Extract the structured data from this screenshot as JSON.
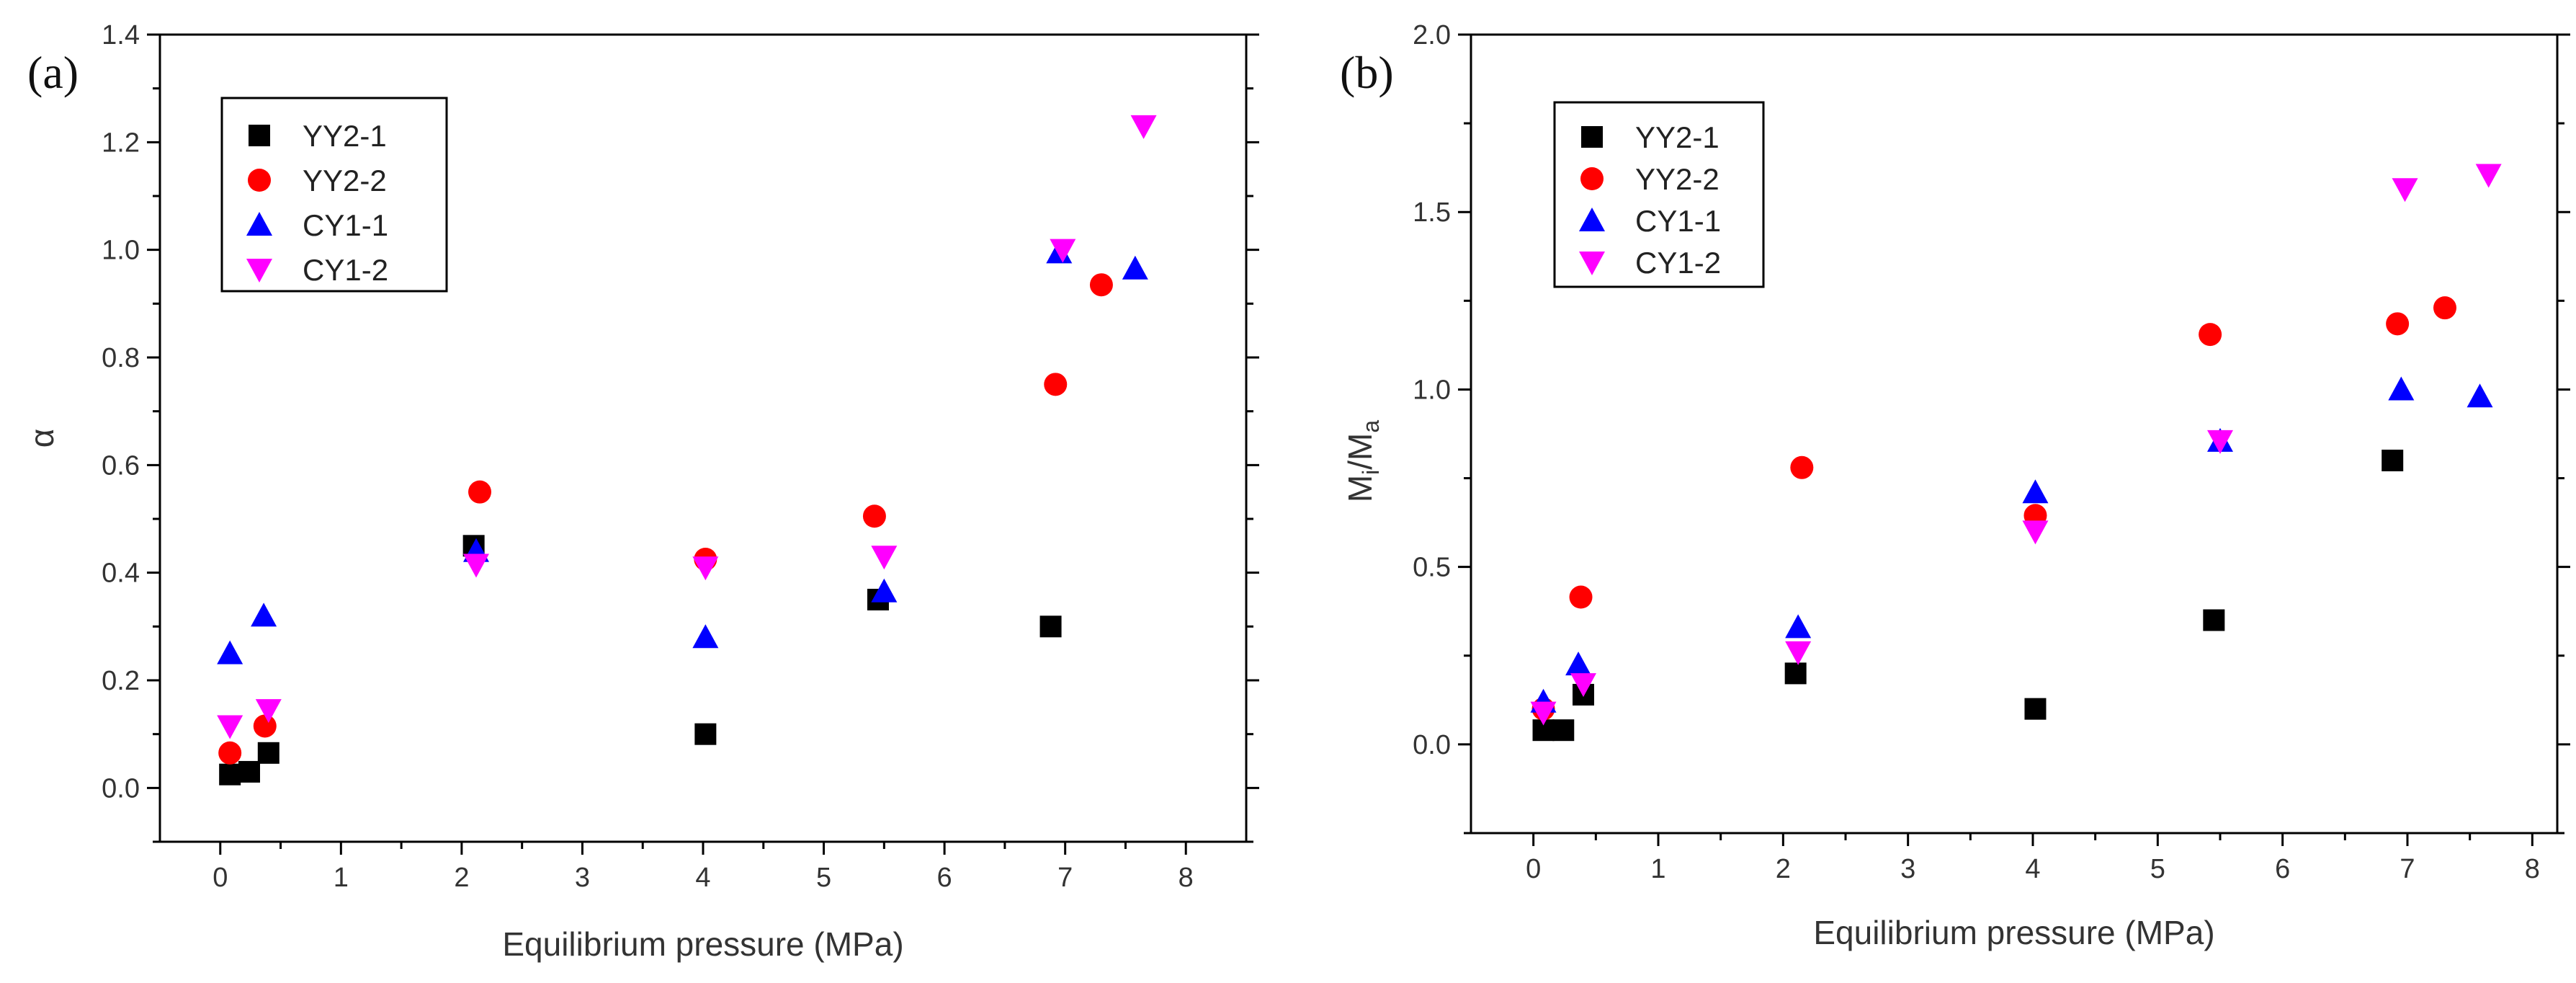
{
  "chart_data": [
    {
      "type": "scatter",
      "panel_label": "(a)",
      "xlabel": "Equilibrium pressure (MPa)",
      "ylabel": "α",
      "ylabel_sub": "",
      "xlim": [
        -0.5,
        8.5
      ],
      "ylim": [
        -0.1,
        1.4
      ],
      "xticks": [
        0,
        1,
        2,
        3,
        4,
        5,
        6,
        7,
        8
      ],
      "yticks": [
        0.0,
        0.2,
        0.4,
        0.6,
        0.8,
        1.0,
        1.2,
        1.4
      ],
      "ytick_labels": [
        "0.0",
        "0.2",
        "0.4",
        "0.6",
        "0.8",
        "1.0",
        "1.2",
        "1.4"
      ],
      "xtick_labels": [
        "0",
        "1",
        "2",
        "3",
        "4",
        "5",
        "6",
        "7",
        "8"
      ],
      "legend_position": "top-left",
      "series": [
        {
          "name": "YY2-1",
          "marker": "square",
          "color": "#000000",
          "x": [
            0.08,
            0.24,
            0.4,
            2.1,
            4.02,
            5.45,
            6.88
          ],
          "y": [
            0.025,
            0.03,
            0.065,
            0.45,
            0.1,
            0.35,
            0.3
          ]
        },
        {
          "name": "YY2-2",
          "marker": "circle",
          "color": "#ff0000",
          "x": [
            0.08,
            0.37,
            2.15,
            4.02,
            5.42,
            6.92,
            7.3
          ],
          "y": [
            0.065,
            0.115,
            0.55,
            0.425,
            0.505,
            0.75,
            0.935
          ]
        },
        {
          "name": "CY1-1",
          "marker": "triangle-up",
          "color": "#0000ff",
          "x": [
            0.08,
            0.36,
            2.12,
            4.02,
            5.5,
            6.95,
            7.58
          ],
          "y": [
            0.25,
            0.32,
            0.44,
            0.28,
            0.365,
            0.995,
            0.965
          ]
        },
        {
          "name": "CY1-2",
          "marker": "triangle-down",
          "color": "#ff00ff",
          "x": [
            0.08,
            0.4,
            2.12,
            4.02,
            5.5,
            6.98,
            7.65
          ],
          "y": [
            0.115,
            0.145,
            0.415,
            0.41,
            0.43,
            1.0,
            1.23
          ]
        }
      ]
    },
    {
      "type": "scatter",
      "panel_label": "(b)",
      "xlabel": "Equilibrium pressure (MPa)",
      "ylabel": "M",
      "ylabel_sub": "i",
      "ylabel_tail": "/M",
      "ylabel_sub2": "a",
      "xlim": [
        -0.5,
        8.2
      ],
      "ylim": [
        -0.25,
        2.0
      ],
      "xticks": [
        0,
        1,
        2,
        3,
        4,
        5,
        6,
        7,
        8
      ],
      "yticks": [
        0.0,
        0.5,
        1.0,
        1.5,
        2.0
      ],
      "ytick_labels": [
        "0.0",
        "0.5",
        "1.0",
        "1.5",
        "2.0"
      ],
      "xtick_labels": [
        "0",
        "1",
        "2",
        "3",
        "4",
        "5",
        "6",
        "7",
        "8"
      ],
      "legend_position": "top-left",
      "series": [
        {
          "name": "YY2-1",
          "marker": "square",
          "color": "#000000",
          "x": [
            0.08,
            0.24,
            0.4,
            2.1,
            4.02,
            5.45,
            6.88
          ],
          "y": [
            0.04,
            0.04,
            0.14,
            0.2,
            0.1,
            0.35,
            0.8
          ]
        },
        {
          "name": "YY2-2",
          "marker": "circle",
          "color": "#ff0000",
          "x": [
            0.08,
            0.38,
            2.15,
            4.02,
            5.42,
            6.92,
            7.3
          ],
          "y": [
            0.1,
            0.415,
            0.78,
            0.645,
            1.155,
            1.185,
            1.23
          ]
        },
        {
          "name": "CY1-1",
          "marker": "triangle-up",
          "color": "#0000ff",
          "x": [
            0.08,
            0.36,
            2.12,
            4.02,
            5.5,
            6.95,
            7.58
          ],
          "y": [
            0.12,
            0.225,
            0.33,
            0.71,
            0.855,
            1.0,
            0.98
          ]
        },
        {
          "name": "CY1-2",
          "marker": "triangle-down",
          "color": "#ff00ff",
          "x": [
            0.08,
            0.4,
            2.12,
            4.02,
            5.5,
            6.98,
            7.65
          ],
          "y": [
            0.09,
            0.17,
            0.26,
            0.6,
            0.855,
            1.565,
            1.605
          ]
        }
      ]
    }
  ]
}
